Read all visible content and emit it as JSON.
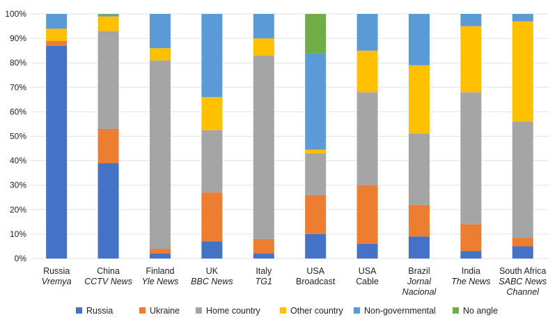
{
  "chart_data": {
    "type": "stacked-bar",
    "title": "",
    "xlabel": "",
    "ylabel": "",
    "ylim": [
      0,
      100
    ],
    "y_ticks": [
      "0%",
      "10%",
      "20%",
      "30%",
      "40%",
      "50%",
      "60%",
      "70%",
      "80%",
      "90%",
      "100%"
    ],
    "grid": true,
    "legend_position": "bottom",
    "categories": [
      {
        "line1": "Russia",
        "line2": "Vremya",
        "line3": ""
      },
      {
        "line1": "China",
        "line2": "CCTV News",
        "line3": ""
      },
      {
        "line1": "Finland",
        "line2": "Yle News",
        "line3": ""
      },
      {
        "line1": "UK",
        "line2": "BBC News",
        "line3": ""
      },
      {
        "line1": "Italy",
        "line2": "TG1",
        "line3": ""
      },
      {
        "line1": "USA",
        "line2": "Broadcast",
        "line3": ""
      },
      {
        "line1": "USA",
        "line2": "Cable",
        "line3": ""
      },
      {
        "line1": "Brazil",
        "line2": "Jornal",
        "line3": "Nacional"
      },
      {
        "line1": "India",
        "line2": "The News",
        "line3": ""
      },
      {
        "line1": "South Africa",
        "line2": "SABC News",
        "line3": "Channel"
      }
    ],
    "category_line2_italic": [
      true,
      true,
      true,
      true,
      true,
      false,
      false,
      true,
      true,
      true
    ],
    "series": [
      {
        "name": "Russia",
        "color": "#4472c4",
        "values": [
          87,
          39,
          2,
          7,
          2,
          10,
          6,
          9,
          3,
          5
        ]
      },
      {
        "name": "Ukraine",
        "color": "#ed7d31",
        "values": [
          2,
          14,
          2,
          20,
          6,
          16,
          24,
          13,
          11,
          3.5
        ]
      },
      {
        "name": "Home country",
        "color": "#a5a5a5",
        "values": [
          0,
          40,
          77,
          25.5,
          75,
          17,
          38,
          29,
          54,
          47.5
        ]
      },
      {
        "name": "Other country",
        "color": "#ffc000",
        "values": [
          5,
          6,
          5,
          13.5,
          7,
          1.5,
          17,
          28,
          27,
          41
        ]
      },
      {
        "name": "Non-governmental",
        "color": "#5b9bd5",
        "values": [
          6,
          0.7,
          14,
          34,
          10,
          39.5,
          15,
          21,
          5,
          3
        ]
      },
      {
        "name": "No angle",
        "color": "#70ad47",
        "values": [
          0,
          0.3,
          0,
          0,
          0,
          16,
          0,
          0,
          0,
          0
        ]
      }
    ]
  }
}
